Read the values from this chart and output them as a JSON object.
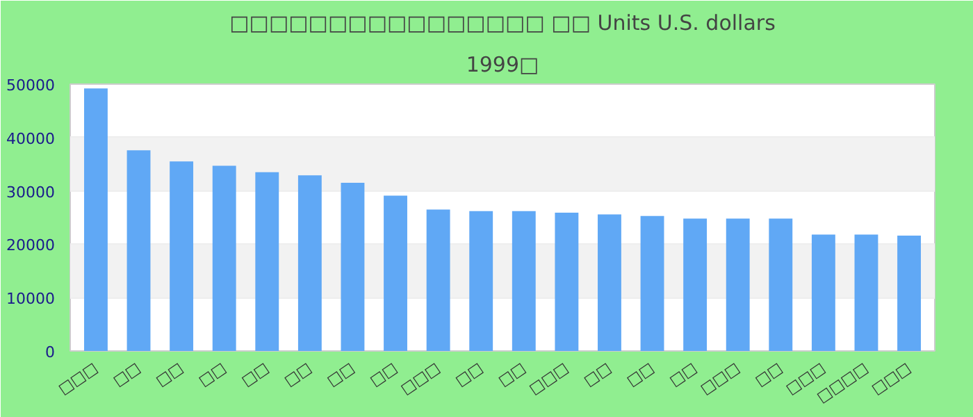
{
  "chart_data": {
    "type": "bar",
    "title": "□□□□□□□□□□□□□□□□ □□ Units U.S. dollars",
    "subtitle": "1999□",
    "categories": [
      "□□□",
      "□□",
      "□□",
      "□□",
      "□□",
      "□□",
      "□□",
      "□□",
      "□□□",
      "□□",
      "□□",
      "□□□",
      "□□",
      "□□",
      "□□",
      "□□□",
      "□□",
      "□□□",
      "□□□□",
      "□□□"
    ],
    "values": [
      49200,
      37600,
      35500,
      34700,
      33500,
      32900,
      31500,
      29100,
      26500,
      26200,
      26200,
      25900,
      25600,
      25300,
      24800,
      24800,
      24800,
      21800,
      21800,
      21600
    ],
    "color": "#60a8f5",
    "ylim": [
      0,
      50000
    ],
    "yticks": [
      0,
      10000,
      20000,
      30000,
      40000,
      50000
    ],
    "grid": "y"
  }
}
